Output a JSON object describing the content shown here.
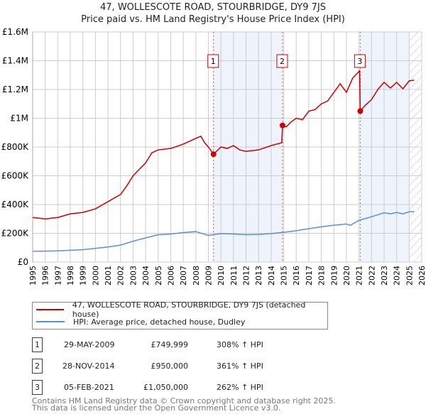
{
  "chart_data": {
    "type": "line",
    "title": "47, WOLLESCOTE ROAD, STOURBRIDGE, DY9 7JS",
    "subtitle": "Price paid vs. HM Land Registry's House Price Index (HPI)",
    "xlim": [
      1995,
      2026
    ],
    "ylim": [
      0,
      1600000
    ],
    "x_ticks": [
      "1995",
      "1996",
      "1997",
      "1998",
      "1999",
      "2000",
      "2001",
      "2002",
      "2003",
      "2004",
      "2005",
      "2006",
      "2007",
      "2008",
      "2009",
      "2010",
      "2011",
      "2012",
      "2013",
      "2014",
      "2015",
      "2016",
      "2017",
      "2018",
      "2019",
      "2020",
      "2021",
      "2022",
      "2023",
      "2024",
      "2025",
      "2026"
    ],
    "y_ticks": [
      {
        "v": 0,
        "l": "£0"
      },
      {
        "v": 200000,
        "l": "£200K"
      },
      {
        "v": 400000,
        "l": "£400K"
      },
      {
        "v": 600000,
        "l": "£600K"
      },
      {
        "v": 800000,
        "l": "£800K"
      },
      {
        "v": 1000000,
        "l": "£1M"
      },
      {
        "v": 1200000,
        "l": "£1.2M"
      },
      {
        "v": 1400000,
        "l": "£1.4M"
      },
      {
        "v": 1600000,
        "l": "£1.6M"
      }
    ],
    "series": [
      {
        "name": "47, WOLLESCOTE ROAD, STOURBRIDGE, DY9 7JS (detached house)",
        "color": "#cc0000",
        "points": [
          [
            1995,
            310
          ],
          [
            1996,
            300
          ],
          [
            1997,
            310
          ],
          [
            1998,
            335
          ],
          [
            1999,
            345
          ],
          [
            2000,
            370
          ],
          [
            2001,
            420
          ],
          [
            2002,
            470
          ],
          [
            2002.5,
            530
          ],
          [
            2003,
            600
          ],
          [
            2004,
            690
          ],
          [
            2004.5,
            760
          ],
          [
            2005,
            780
          ],
          [
            2006,
            790
          ],
          [
            2007,
            820
          ],
          [
            2008,
            860
          ],
          [
            2008.4,
            875
          ],
          [
            2008.7,
            830
          ],
          [
            2009.0,
            800
          ],
          [
            2009.41,
            750
          ],
          [
            2010,
            800
          ],
          [
            2010.5,
            790
          ],
          [
            2011,
            810
          ],
          [
            2011.5,
            780
          ],
          [
            2012,
            770
          ],
          [
            2013,
            780
          ],
          [
            2014,
            810
          ],
          [
            2014.85,
            830
          ],
          [
            2014.91,
            950
          ],
          [
            2015.2,
            940
          ],
          [
            2015.6,
            975
          ],
          [
            2016,
            1000
          ],
          [
            2016.5,
            990
          ],
          [
            2017,
            1050
          ],
          [
            2017.5,
            1060
          ],
          [
            2018,
            1100
          ],
          [
            2018.5,
            1120
          ],
          [
            2019,
            1180
          ],
          [
            2019.5,
            1240
          ],
          [
            2020,
            1180
          ],
          [
            2020.5,
            1280
          ],
          [
            2021.05,
            1330
          ],
          [
            2021.1,
            1050
          ],
          [
            2021.5,
            1090
          ],
          [
            2022,
            1130
          ],
          [
            2022.5,
            1200
          ],
          [
            2023,
            1250
          ],
          [
            2023.5,
            1210
          ],
          [
            2024,
            1250
          ],
          [
            2024.5,
            1205
          ],
          [
            2025,
            1260
          ],
          [
            2025.4,
            1265
          ]
        ]
      },
      {
        "name": "HPI: Average price, detached house, Dudley",
        "color": "#5b8fd6",
        "points": [
          [
            1995,
            75
          ],
          [
            1996,
            76
          ],
          [
            1997,
            78
          ],
          [
            1998,
            82
          ],
          [
            1999,
            86
          ],
          [
            2000,
            95
          ],
          [
            2001,
            105
          ],
          [
            2002,
            118
          ],
          [
            2003,
            145
          ],
          [
            2004,
            168
          ],
          [
            2005,
            190
          ],
          [
            2006,
            195
          ],
          [
            2007,
            205
          ],
          [
            2008,
            212
          ],
          [
            2009,
            185
          ],
          [
            2010,
            198
          ],
          [
            2011,
            195
          ],
          [
            2012,
            190
          ],
          [
            2013,
            192
          ],
          [
            2014,
            198
          ],
          [
            2015,
            207
          ],
          [
            2016,
            218
          ],
          [
            2017,
            232
          ],
          [
            2018,
            245
          ],
          [
            2019,
            256
          ],
          [
            2020,
            265
          ],
          [
            2020.3,
            255
          ],
          [
            2021,
            290
          ],
          [
            2022,
            315
          ],
          [
            2023,
            343
          ],
          [
            2023.5,
            335
          ],
          [
            2024,
            345
          ],
          [
            2024.5,
            335
          ],
          [
            2025,
            350
          ],
          [
            2025.4,
            350
          ]
        ]
      }
    ],
    "units_note": "series values in £K",
    "sales": [
      {
        "n": "1",
        "x": 2009.41,
        "price": 749999,
        "date": "29-MAY-2009",
        "price_label": "£749,999",
        "hpi": "308% ↑ HPI"
      },
      {
        "n": "2",
        "x": 2014.91,
        "price": 950000,
        "date": "28-NOV-2014",
        "price_label": "£950,000",
        "hpi": "361% ↑ HPI"
      },
      {
        "n": "3",
        "x": 2021.1,
        "price": 1050000,
        "date": "05-FEB-2021",
        "price_label": "£1,050,000",
        "hpi": "262% ↑ HPI"
      }
    ],
    "shaded": [
      [
        2009.41,
        2014.91
      ],
      [
        2021.1,
        2025.0
      ]
    ],
    "hatched_from": 2025.0,
    "legend_placement": "below"
  },
  "footer": [
    "Contains HM Land Registry data © Crown copyright and database right 2025.",
    "This data is licensed under the Open Government Licence v3.0."
  ]
}
